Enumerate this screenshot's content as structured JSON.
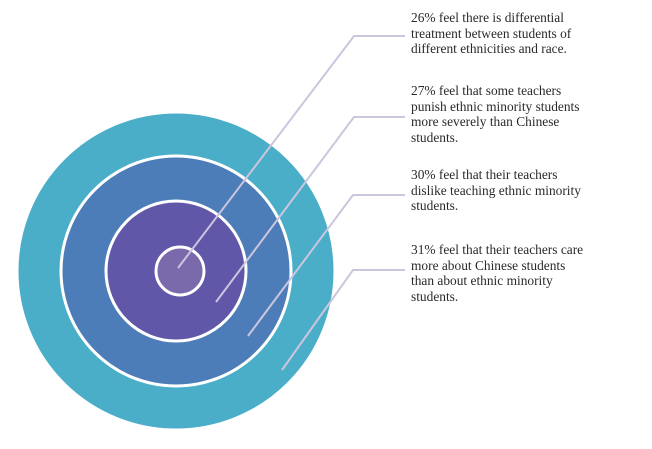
{
  "rings": [
    {
      "color": "#4aaec8",
      "border": "#ffffff"
    },
    {
      "color": "#4d7db8",
      "border": "#ffffff"
    },
    {
      "color": "#6057a8",
      "border": "#ffffff"
    },
    {
      "color": "#7a6aab",
      "border": "#ffffff"
    }
  ],
  "leader_color": "#cbc6de",
  "labels": [
    {
      "text": "26% feel there is differential\ntreatment between students of\ndifferent ethnicities and race."
    },
    {
      "text": "27% feel that some teachers\npunish ethnic minority students\nmore severely than Chinese\nstudents."
    },
    {
      "text": "30% feel that their teachers\ndislike teaching ethnic minority\nstudents."
    },
    {
      "text": "31% feel that their teachers care\nmore about Chinese students\nthan about ethnic minority\nstudents."
    }
  ]
}
